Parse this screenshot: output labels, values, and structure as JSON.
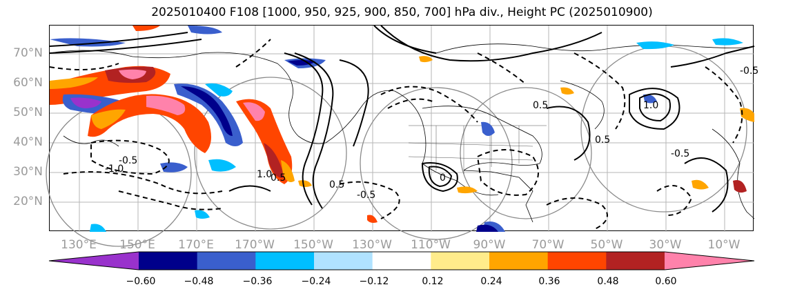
{
  "title": "2025010400 F108 [1000, 950, 925, 900, 850, 700] hPa div., Height PC (2025010900)",
  "lat_labels": [
    "70°N",
    "60°N",
    "50°N",
    "40°N",
    "30°N",
    "20°N"
  ],
  "lon_labels": [
    "130°E",
    "150°E",
    "170°E",
    "170°W",
    "150°W",
    "130°W",
    "110°W",
    "90°W",
    "70°W",
    "50°W",
    "30°W",
    "10°W"
  ],
  "colorbar": {
    "ticks": [
      "−0.60",
      "−0.48",
      "−0.36",
      "−0.24",
      "−0.12",
      "0.12",
      "0.24",
      "0.36",
      "0.48",
      "0.60"
    ],
    "colors": [
      "#9932cc",
      "#00008b",
      "#3a5fcd",
      "#00bfff",
      "#b0e2ff",
      "#ffffff",
      "#ffec8b",
      "#ffa500",
      "#ff4500",
      "#b22222",
      "#ff82ab"
    ]
  },
  "contour_labels": [
    "0.5",
    "-0.5",
    "1.0",
    "-1.0",
    "0.5",
    "-0.5",
    "0",
    "0.5",
    "-0.5",
    "1.0",
    "-0.5",
    "0.5"
  ]
}
